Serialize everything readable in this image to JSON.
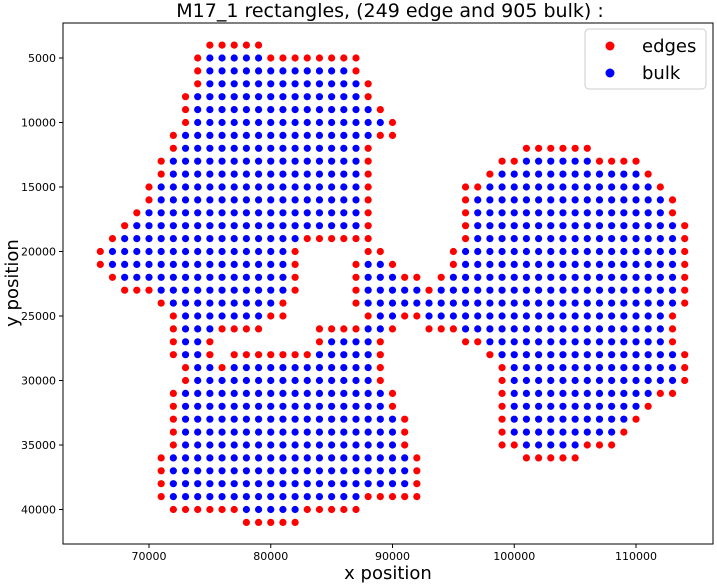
{
  "chart_data": {
    "type": "scatter",
    "title": "M17_1 rectangles, (249 edge and 905 bulk) :",
    "xlabel": "x position",
    "ylabel": "y position",
    "xlim": [
      63000,
      115000
    ],
    "ylim": [
      3000,
      43000
    ],
    "y_inverted": true,
    "grid": false,
    "legend_position": "top-right",
    "x_ticks": [
      70000,
      80000,
      90000,
      100000,
      110000
    ],
    "y_ticks": [
      5000,
      10000,
      15000,
      20000,
      25000,
      30000,
      35000,
      40000
    ],
    "x_tick_labels": [
      "70000",
      "80000",
      "90000",
      "100000",
      "110000"
    ],
    "y_tick_labels": [
      "5000",
      "10000",
      "15000",
      "20000",
      "25000",
      "30000",
      "35000",
      "40000"
    ],
    "grid_step": 1000,
    "series": [
      {
        "name": "edges",
        "color": "#ff0000"
      },
      {
        "name": "bulk",
        "color": "#0000ff"
      }
    ],
    "rows": [
      [
        4000,
        [
          [
            75000,
            79000
          ]
        ]
      ],
      [
        5000,
        [
          [
            74000,
            87000
          ]
        ]
      ],
      [
        6000,
        [
          [
            74000,
            87000
          ]
        ]
      ],
      [
        7000,
        [
          [
            74000,
            88000
          ]
        ]
      ],
      [
        8000,
        [
          [
            73000,
            88000
          ]
        ]
      ],
      [
        9000,
        [
          [
            73000,
            89000
          ]
        ]
      ],
      [
        10000,
        [
          [
            73000,
            90000
          ]
        ]
      ],
      [
        11000,
        [
          [
            72000,
            90000
          ]
        ]
      ],
      [
        12000,
        [
          [
            72000,
            88000
          ],
          [
            101000,
            106000
          ]
        ]
      ],
      [
        13000,
        [
          [
            71000,
            88000
          ],
          [
            99000,
            110000
          ]
        ]
      ],
      [
        14000,
        [
          [
            71000,
            88000
          ],
          [
            98000,
            111000
          ]
        ]
      ],
      [
        15000,
        [
          [
            70000,
            88000
          ],
          [
            96000,
            112000
          ]
        ]
      ],
      [
        16000,
        [
          [
            70000,
            88000
          ],
          [
            96000,
            113000
          ]
        ]
      ],
      [
        17000,
        [
          [
            69000,
            88000
          ],
          [
            96000,
            113000
          ]
        ]
      ],
      [
        18000,
        [
          [
            68000,
            88000
          ],
          [
            96000,
            114000
          ]
        ]
      ],
      [
        19000,
        [
          [
            67000,
            88000
          ],
          [
            96000,
            114000
          ]
        ]
      ],
      [
        20000,
        [
          [
            66000,
            82000
          ],
          [
            88000,
            89000
          ],
          [
            95000,
            114000
          ]
        ]
      ],
      [
        21000,
        [
          [
            66000,
            82000
          ],
          [
            87000,
            90000
          ],
          [
            95000,
            114000
          ]
        ]
      ],
      [
        22000,
        [
          [
            67000,
            82000
          ],
          [
            87000,
            92000
          ],
          [
            94000,
            114000
          ]
        ]
      ],
      [
        23000,
        [
          [
            68000,
            82000
          ],
          [
            87000,
            114000
          ]
        ]
      ],
      [
        24000,
        [
          [
            71000,
            81000
          ],
          [
            87000,
            114000
          ]
        ]
      ],
      [
        25000,
        [
          [
            72000,
            81000
          ],
          [
            88000,
            113000
          ]
        ]
      ],
      [
        26000,
        [
          [
            72000,
            79000
          ],
          [
            84000,
            90000
          ],
          [
            93000,
            113000
          ]
        ]
      ],
      [
        27000,
        [
          [
            72000,
            75000
          ],
          [
            84000,
            89000
          ],
          [
            96000,
            113000
          ]
        ]
      ],
      [
        28000,
        [
          [
            72000,
            75000
          ],
          [
            77000,
            89000
          ],
          [
            98000,
            114000
          ]
        ]
      ],
      [
        29000,
        [
          [
            73000,
            89000
          ],
          [
            99000,
            114000
          ]
        ]
      ],
      [
        30000,
        [
          [
            73000,
            89000
          ],
          [
            99000,
            114000
          ]
        ]
      ],
      [
        31000,
        [
          [
            72000,
            90000
          ],
          [
            99000,
            113000
          ]
        ]
      ],
      [
        32000,
        [
          [
            72000,
            90000
          ],
          [
            99000,
            111000
          ]
        ]
      ],
      [
        33000,
        [
          [
            72000,
            91000
          ],
          [
            99000,
            110000
          ]
        ]
      ],
      [
        34000,
        [
          [
            72000,
            91000
          ],
          [
            99000,
            109000
          ]
        ]
      ],
      [
        35000,
        [
          [
            72000,
            91000
          ],
          [
            99000,
            108000
          ]
        ]
      ],
      [
        36000,
        [
          [
            71000,
            92000
          ],
          [
            101000,
            105000
          ]
        ]
      ],
      [
        37000,
        [
          [
            71000,
            92000
          ]
        ]
      ],
      [
        38000,
        [
          [
            71000,
            92000
          ]
        ]
      ],
      [
        39000,
        [
          [
            71000,
            92000
          ]
        ]
      ],
      [
        40000,
        [
          [
            72000,
            87000
          ]
        ]
      ],
      [
        41000,
        [
          [
            78000,
            82000
          ]
        ]
      ]
    ]
  }
}
